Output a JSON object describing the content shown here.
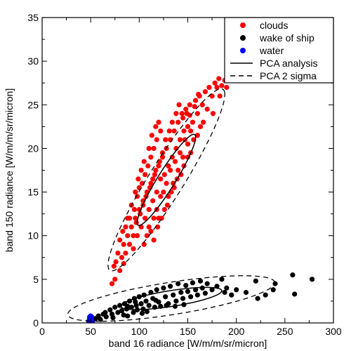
{
  "chart_data": {
    "type": "scatter",
    "xlabel": "band 16 radiance [W/m/m/sr/micron]",
    "ylabel": "band 150 radiance [W/m/m/sr/micron]",
    "xlim": [
      0,
      300
    ],
    "ylim": [
      0,
      35
    ],
    "x_ticks": [
      0,
      50,
      100,
      150,
      200,
      250,
      300
    ],
    "y_ticks": [
      0,
      5,
      10,
      15,
      20,
      25,
      30,
      35
    ],
    "grid": false,
    "legend_position": "top-right",
    "legend": [
      {
        "label": "clouds",
        "kind": "marker",
        "color": "#ff0000"
      },
      {
        "label": "wake of ship",
        "kind": "marker",
        "color": "#000000"
      },
      {
        "label": "water",
        "kind": "marker",
        "color": "#0000ff"
      },
      {
        "label": "PCA analysis",
        "kind": "solid"
      },
      {
        "label": "PCA 2 sigma",
        "kind": "dashed"
      }
    ],
    "series": [
      {
        "name": "clouds",
        "color": "#ff0000",
        "points": [
          [
            72,
            4.5
          ],
          [
            74,
            6.5
          ],
          [
            75,
            5
          ],
          [
            76,
            7
          ],
          [
            78,
            8
          ],
          [
            80,
            6
          ],
          [
            82,
            7.5
          ],
          [
            84,
            9
          ],
          [
            86,
            8
          ],
          [
            88,
            10
          ],
          [
            84,
            6.8
          ],
          [
            90,
            9
          ],
          [
            92,
            11
          ],
          [
            94,
            8.5
          ],
          [
            96,
            12
          ],
          [
            98,
            10
          ],
          [
            100,
            13
          ],
          [
            102,
            11
          ],
          [
            104,
            14
          ],
          [
            106,
            12
          ],
          [
            108,
            15
          ],
          [
            110,
            13
          ],
          [
            112,
            16
          ],
          [
            114,
            14
          ],
          [
            116,
            17
          ],
          [
            118,
            15
          ],
          [
            120,
            18
          ],
          [
            122,
            16.5
          ],
          [
            124,
            19
          ],
          [
            126,
            17
          ],
          [
            128,
            20
          ],
          [
            130,
            18
          ],
          [
            132,
            21
          ],
          [
            134,
            19
          ],
          [
            136,
            22
          ],
          [
            138,
            20
          ],
          [
            140,
            23
          ],
          [
            142,
            21
          ],
          [
            144,
            24
          ],
          [
            146,
            22
          ],
          [
            148,
            24.5
          ],
          [
            150,
            22.5
          ],
          [
            152,
            25
          ],
          [
            155,
            23
          ],
          [
            158,
            25.5
          ],
          [
            160,
            24
          ],
          [
            162,
            26
          ],
          [
            165,
            25
          ],
          [
            168,
            26.5
          ],
          [
            170,
            24.5
          ],
          [
            172,
            27
          ],
          [
            175,
            26
          ],
          [
            178,
            27.5
          ],
          [
            180,
            27
          ],
          [
            182,
            28
          ],
          [
            185,
            27.2
          ],
          [
            188,
            27.8
          ],
          [
            190,
            27
          ],
          [
            183,
            26
          ],
          [
            176,
            24
          ],
          [
            105,
            9
          ],
          [
            108,
            10
          ],
          [
            110,
            11
          ],
          [
            112,
            10.5
          ],
          [
            115,
            12
          ],
          [
            118,
            13
          ],
          [
            120,
            12
          ],
          [
            122,
            14.5
          ],
          [
            125,
            15
          ],
          [
            128,
            16
          ],
          [
            130,
            14.5
          ],
          [
            132,
            17.5
          ],
          [
            135,
            16
          ],
          [
            137,
            18.5
          ],
          [
            140,
            17.5
          ],
          [
            142,
            19.5
          ],
          [
            145,
            19
          ],
          [
            147,
            21
          ],
          [
            150,
            20.5
          ],
          [
            153,
            22
          ],
          [
            95,
            13
          ],
          [
            98,
            14.5
          ],
          [
            100,
            15.5
          ],
          [
            103,
            16
          ],
          [
            106,
            17
          ],
          [
            109,
            18
          ],
          [
            112,
            19
          ],
          [
            115,
            20
          ],
          [
            118,
            21
          ],
          [
            122,
            22
          ],
          [
            88,
            12
          ],
          [
            92,
            13.5
          ],
          [
            96,
            15
          ],
          [
            99,
            16.5
          ],
          [
            102,
            17.5
          ],
          [
            105,
            18.5
          ],
          [
            110,
            20
          ],
          [
            113,
            21.5
          ],
          [
            117,
            22.5
          ],
          [
            120,
            23
          ],
          [
            115,
            9.5
          ],
          [
            119,
            11
          ],
          [
            123,
            12
          ],
          [
            126,
            13
          ],
          [
            129,
            13.5
          ],
          [
            133,
            15
          ],
          [
            136,
            15.5
          ],
          [
            139,
            16.5
          ],
          [
            143,
            17
          ],
          [
            146,
            18
          ],
          [
            150,
            19
          ],
          [
            153,
            19.5
          ],
          [
            156,
            21
          ],
          [
            160,
            21.5
          ],
          [
            163,
            22.5
          ],
          [
            166,
            23
          ],
          [
            80,
            9.5
          ],
          [
            83,
            10.5
          ],
          [
            86,
            11
          ],
          [
            90,
            12
          ],
          [
            94,
            10
          ],
          [
            97,
            11.5
          ],
          [
            101,
            12.5
          ],
          [
            104,
            13.5
          ],
          [
            107,
            14.5
          ],
          [
            111,
            15.5
          ],
          [
            114,
            16.5
          ],
          [
            117,
            17.5
          ],
          [
            121,
            18.5
          ],
          [
            124,
            19.5
          ],
          [
            127,
            21
          ],
          [
            131,
            22
          ],
          [
            134,
            23
          ],
          [
            138,
            24
          ],
          [
            141,
            25
          ],
          [
            145,
            23.5
          ],
          [
            149,
            24
          ],
          [
            152,
            23.8
          ],
          [
            157,
            24.8
          ],
          [
            161,
            26.2
          ]
        ]
      },
      {
        "name": "wake of ship",
        "color": "#000000",
        "points": [
          [
            48,
            0.2
          ],
          [
            52,
            0.3
          ],
          [
            55,
            0.5
          ],
          [
            58,
            0.8
          ],
          [
            60,
            0.4
          ],
          [
            63,
            1.0
          ],
          [
            66,
            0.7
          ],
          [
            70,
            1.5
          ],
          [
            72,
            1.0
          ],
          [
            75,
            1.8
          ],
          [
            78,
            1.2
          ],
          [
            80,
            2.0
          ],
          [
            82,
            1.4
          ],
          [
            84,
            0.9
          ],
          [
            85,
            2.2
          ],
          [
            87,
            1.6
          ],
          [
            88,
            0.8
          ],
          [
            90,
            2.5
          ],
          [
            92,
            1.8
          ],
          [
            94,
            1.2
          ],
          [
            95,
            2.8
          ],
          [
            97,
            2.0
          ],
          [
            98,
            1.5
          ],
          [
            100,
            3.0
          ],
          [
            102,
            2.2
          ],
          [
            104,
            1.6
          ],
          [
            105,
            3.2
          ],
          [
            107,
            2.5
          ],
          [
            110,
            2.0
          ],
          [
            112,
            3.5
          ],
          [
            114,
            2.8
          ],
          [
            116,
            1.8
          ],
          [
            118,
            3.8
          ],
          [
            120,
            2.4
          ],
          [
            122,
            1.9
          ],
          [
            125,
            4.0
          ],
          [
            127,
            3.0
          ],
          [
            130,
            2.2
          ],
          [
            132,
            4.2
          ],
          [
            135,
            3.2
          ],
          [
            138,
            2.5
          ],
          [
            140,
            4.5
          ],
          [
            143,
            3.5
          ],
          [
            145,
            2.8
          ],
          [
            148,
            4.3
          ],
          [
            150,
            3.6
          ],
          [
            153,
            3.0
          ],
          [
            155,
            4.6
          ],
          [
            158,
            3.8
          ],
          [
            160,
            3.2
          ],
          [
            163,
            4.8
          ],
          [
            165,
            4.0
          ],
          [
            168,
            3.4
          ],
          [
            170,
            4.5
          ],
          [
            175,
            3.8
          ],
          [
            180,
            4.2
          ],
          [
            185,
            5.0
          ],
          [
            188,
            3.5
          ],
          [
            190,
            4.0
          ],
          [
            195,
            3.2
          ],
          [
            200,
            3.8
          ],
          [
            210,
            3.5
          ],
          [
            220,
            4.8
          ],
          [
            222,
            2.8
          ],
          [
            230,
            3.2
          ],
          [
            238,
            3.8
          ],
          [
            240,
            4.5
          ],
          [
            258,
            5.5
          ],
          [
            260,
            3.3
          ],
          [
            278,
            5.0
          ],
          [
            65,
            1.2
          ],
          [
            73,
            0.6
          ],
          [
            88,
            1.9
          ],
          [
            96,
            2.4
          ],
          [
            103,
            1.1
          ],
          [
            108,
            1.3
          ],
          [
            117,
            2.6
          ],
          [
            128,
            2.0
          ],
          [
            137,
            1.9
          ],
          [
            146,
            2.1
          ]
        ]
      },
      {
        "name": "water",
        "color": "#0000ff",
        "points": [
          [
            48.5,
            0.1
          ],
          [
            49,
            0.3
          ],
          [
            49.5,
            0.5
          ],
          [
            50,
            0.2
          ],
          [
            50.5,
            0.6
          ],
          [
            51,
            0.4
          ],
          [
            51.5,
            0.1
          ],
          [
            50,
            0.8
          ],
          [
            49,
            0.7
          ],
          [
            51,
            0.7
          ],
          [
            48.8,
            0.5
          ],
          [
            50.8,
            0.3
          ],
          [
            49.6,
            0.2
          ],
          [
            50.3,
            0.4
          ]
        ]
      }
    ],
    "pca_lines": [
      {
        "series": "clouds",
        "center": [
          128,
          16.4
        ],
        "semi_major_axis": [
          30,
          5
        ],
        "semi_minor_axis": [
          -2,
          1.5
        ],
        "sigma2_scale": 2.0
      },
      {
        "series": "wake of ship",
        "center": [
          133,
          2.8
        ],
        "semi_major_axis": [
          52,
          0.9
        ],
        "semi_minor_axis": [
          -1.0,
          0.9
        ],
        "sigma2_scale": 2.05
      }
    ]
  }
}
